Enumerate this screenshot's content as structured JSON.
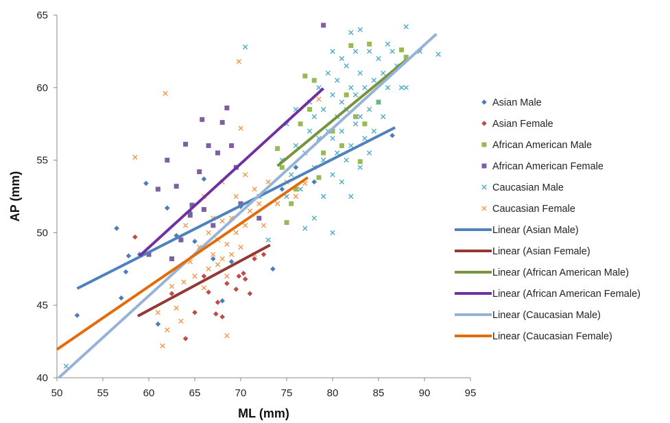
{
  "chart_data": {
    "type": "scatter",
    "title": "",
    "xlabel": "ML (mm)",
    "ylabel": "AP (mm)",
    "xlim": [
      50,
      95
    ],
    "ylim": [
      40,
      65
    ],
    "xticks": [
      50,
      55,
      60,
      65,
      70,
      75,
      80,
      85,
      90,
      95
    ],
    "yticks": [
      40,
      45,
      50,
      55,
      60,
      65
    ],
    "grid": false,
    "legend_position": "right",
    "series": [
      {
        "name": "Asian Male",
        "kind": "points",
        "marker": "diamond",
        "color": "#4a7ebb",
        "points": [
          [
            52.2,
            44.3
          ],
          [
            56.5,
            50.3
          ],
          [
            57.0,
            45.5
          ],
          [
            57.5,
            47.3
          ],
          [
            57.8,
            48.4
          ],
          [
            59.0,
            48.5
          ],
          [
            59.7,
            53.4
          ],
          [
            61.0,
            43.7
          ],
          [
            62.0,
            51.7
          ],
          [
            63.0,
            49.8
          ],
          [
            64.5,
            51.4
          ],
          [
            65.0,
            49.4
          ],
          [
            66.0,
            53.7
          ],
          [
            67.0,
            48.2
          ],
          [
            68.0,
            45.3
          ],
          [
            69.0,
            48.0
          ],
          [
            70.0,
            51.8
          ],
          [
            73.5,
            47.5
          ],
          [
            74.5,
            53.0
          ],
          [
            76.0,
            54.5
          ],
          [
            78.0,
            53.5
          ],
          [
            86.5,
            56.7
          ]
        ]
      },
      {
        "name": "Asian Female",
        "kind": "points",
        "marker": "diamond",
        "color": "#be4b48",
        "points": [
          [
            58.5,
            49.7
          ],
          [
            62.5,
            45.8
          ],
          [
            64.0,
            42.7
          ],
          [
            65.0,
            44.5
          ],
          [
            66.0,
            47.0
          ],
          [
            66.5,
            45.9
          ],
          [
            67.3,
            44.4
          ],
          [
            67.5,
            45.2
          ],
          [
            68.0,
            44.2
          ],
          [
            68.5,
            46.5
          ],
          [
            69.5,
            46.1
          ],
          [
            69.8,
            47.0
          ],
          [
            70.3,
            47.2
          ],
          [
            70.5,
            46.8
          ],
          [
            71.0,
            45.8
          ],
          [
            71.5,
            48.2
          ],
          [
            72.5,
            48.5
          ]
        ]
      },
      {
        "name": "African American Male",
        "kind": "points",
        "marker": "square",
        "color": "#98b954",
        "points": [
          [
            74.0,
            55.8
          ],
          [
            74.5,
            54.5
          ],
          [
            75.0,
            50.7
          ],
          [
            75.5,
            52.0
          ],
          [
            76.0,
            53.0
          ],
          [
            76.5,
            57.5
          ],
          [
            77.0,
            60.8
          ],
          [
            77.5,
            58.5
          ],
          [
            78.0,
            60.5
          ],
          [
            78.5,
            53.8
          ],
          [
            79.0,
            55.5
          ],
          [
            80.0,
            57.0
          ],
          [
            81.0,
            56.0
          ],
          [
            81.5,
            59.5
          ],
          [
            82.0,
            62.9
          ],
          [
            82.5,
            58.0
          ],
          [
            83.0,
            54.9
          ],
          [
            83.5,
            57.5
          ],
          [
            84.0,
            63.0
          ],
          [
            85.0,
            59.0
          ],
          [
            87.5,
            62.6
          ],
          [
            88.0,
            62.1
          ]
        ]
      },
      {
        "name": "African American Female",
        "kind": "points",
        "marker": "square",
        "color": "#7d60a0",
        "points": [
          [
            60.0,
            48.5
          ],
          [
            61.0,
            53.0
          ],
          [
            62.0,
            55.0
          ],
          [
            62.5,
            48.2
          ],
          [
            63.0,
            53.2
          ],
          [
            63.5,
            49.5
          ],
          [
            64.0,
            56.1
          ],
          [
            64.5,
            51.2
          ],
          [
            64.7,
            51.9
          ],
          [
            65.5,
            54.2
          ],
          [
            65.8,
            57.8
          ],
          [
            66.0,
            51.6
          ],
          [
            66.5,
            56.0
          ],
          [
            67.0,
            50.5
          ],
          [
            67.5,
            55.5
          ],
          [
            68.0,
            57.6
          ],
          [
            68.5,
            58.6
          ],
          [
            69.0,
            56.0
          ],
          [
            69.5,
            54.5
          ],
          [
            70.0,
            52.0
          ],
          [
            72.0,
            51.0
          ],
          [
            79.0,
            64.3
          ]
        ]
      },
      {
        "name": "Caucasian Male",
        "kind": "points",
        "marker": "x",
        "color": "#4bacc6",
        "points": [
          [
            51.0,
            40.8
          ],
          [
            70.5,
            62.8
          ],
          [
            72.0,
            52.5
          ],
          [
            73.0,
            49.5
          ],
          [
            74.0,
            52.0
          ],
          [
            74.5,
            55.0
          ],
          [
            75.0,
            52.5
          ],
          [
            75.0,
            57.5
          ],
          [
            75.5,
            54.0
          ],
          [
            76.0,
            56.0
          ],
          [
            76.0,
            58.5
          ],
          [
            76.5,
            53.0
          ],
          [
            77.0,
            50.3
          ],
          [
            77.0,
            55.5
          ],
          [
            77.5,
            57.0
          ],
          [
            77.5,
            59.0
          ],
          [
            78.0,
            51.0
          ],
          [
            78.0,
            54.5
          ],
          [
            78.0,
            58.0
          ],
          [
            78.5,
            56.5
          ],
          [
            78.5,
            60.0
          ],
          [
            79.0,
            52.5
          ],
          [
            79.0,
            55.0
          ],
          [
            79.0,
            58.5
          ],
          [
            79.5,
            57.0
          ],
          [
            79.5,
            61.0
          ],
          [
            80.0,
            50.0
          ],
          [
            80.0,
            54.0
          ],
          [
            80.0,
            56.5
          ],
          [
            80.0,
            59.5
          ],
          [
            80.0,
            62.5
          ],
          [
            80.5,
            55.5
          ],
          [
            80.5,
            58.0
          ],
          [
            80.5,
            60.5
          ],
          [
            81.0,
            53.5
          ],
          [
            81.0,
            57.0
          ],
          [
            81.0,
            59.0
          ],
          [
            81.0,
            62.0
          ],
          [
            81.5,
            55.0
          ],
          [
            81.5,
            58.5
          ],
          [
            81.5,
            61.5
          ],
          [
            82.0,
            52.5
          ],
          [
            82.0,
            56.0
          ],
          [
            82.0,
            60.0
          ],
          [
            82.0,
            63.8
          ],
          [
            82.5,
            57.5
          ],
          [
            82.5,
            59.5
          ],
          [
            82.5,
            62.5
          ],
          [
            83.0,
            54.5
          ],
          [
            83.0,
            58.0
          ],
          [
            83.0,
            61.0
          ],
          [
            83.0,
            64.0
          ],
          [
            83.5,
            56.5
          ],
          [
            83.5,
            60.0
          ],
          [
            84.0,
            55.5
          ],
          [
            84.0,
            58.5
          ],
          [
            84.0,
            62.5
          ],
          [
            84.5,
            57.0
          ],
          [
            84.5,
            60.5
          ],
          [
            85.0,
            59.0
          ],
          [
            85.0,
            62.0
          ],
          [
            85.5,
            58.0
          ],
          [
            85.5,
            61.0
          ],
          [
            86.0,
            63.0
          ],
          [
            86.0,
            60.0
          ],
          [
            86.5,
            62.5
          ],
          [
            87.0,
            61.5
          ],
          [
            87.5,
            60.0
          ],
          [
            88.0,
            64.2
          ],
          [
            88.0,
            60.0
          ],
          [
            89.5,
            62.5
          ],
          [
            91.5,
            62.3
          ]
        ]
      },
      {
        "name": "Caucasian Female",
        "kind": "points",
        "marker": "x",
        "color": "#f79646",
        "points": [
          [
            58.5,
            55.2
          ],
          [
            61.0,
            44.5
          ],
          [
            61.5,
            42.2
          ],
          [
            61.8,
            59.6
          ],
          [
            62.0,
            43.3
          ],
          [
            62.5,
            46.3
          ],
          [
            63.0,
            44.8
          ],
          [
            63.5,
            43.9
          ],
          [
            63.8,
            46.6
          ],
          [
            64.0,
            50.5
          ],
          [
            64.5,
            48.0
          ],
          [
            65.0,
            47.0
          ],
          [
            65.5,
            49.0
          ],
          [
            66.0,
            46.2
          ],
          [
            66.0,
            52.5
          ],
          [
            66.5,
            47.5
          ],
          [
            66.5,
            50.0
          ],
          [
            67.0,
            48.5
          ],
          [
            67.0,
            51.0
          ],
          [
            67.5,
            47.8
          ],
          [
            67.5,
            49.5
          ],
          [
            68.0,
            48.2
          ],
          [
            68.0,
            50.8
          ],
          [
            68.0,
            53.5
          ],
          [
            68.5,
            47.0
          ],
          [
            68.5,
            49.2
          ],
          [
            68.5,
            42.9
          ],
          [
            69.0,
            48.5
          ],
          [
            69.0,
            51.0
          ],
          [
            69.5,
            50.0
          ],
          [
            69.5,
            52.5
          ],
          [
            69.8,
            61.8
          ],
          [
            70.0,
            49.0
          ],
          [
            70.0,
            57.2
          ],
          [
            70.5,
            50.5
          ],
          [
            70.5,
            54.0
          ],
          [
            71.0,
            51.5
          ],
          [
            71.5,
            48.5
          ],
          [
            71.5,
            53.0
          ],
          [
            72.0,
            52.0
          ],
          [
            72.5,
            50.5
          ],
          [
            73.0,
            53.5
          ],
          [
            74.0,
            52.0
          ],
          [
            75.0,
            53.5
          ],
          [
            76.0,
            52.5
          ],
          [
            77.0,
            53.4
          ],
          [
            78.5,
            59.2
          ]
        ]
      },
      {
        "name": "Linear (Asian Male)",
        "kind": "line",
        "color": "#4f81bd",
        "points": [
          [
            52.2,
            46.15
          ],
          [
            86.8,
            57.25
          ]
        ]
      },
      {
        "name": "Linear (Asian Female)",
        "kind": "line",
        "color": "#953735",
        "points": [
          [
            58.8,
            44.25
          ],
          [
            73.2,
            49.15
          ]
        ]
      },
      {
        "name": "Linear (African American Male)",
        "kind": "line",
        "color": "#77933c",
        "points": [
          [
            74.0,
            54.6
          ],
          [
            88.0,
            61.9
          ]
        ]
      },
      {
        "name": "Linear (African American Female)",
        "kind": "line",
        "color": "#7030a0",
        "points": [
          [
            59.0,
            48.4
          ],
          [
            79.0,
            59.95
          ]
        ]
      },
      {
        "name": "Linear (Caucasian Male)",
        "kind": "line",
        "color": "#95b3d7",
        "points": [
          [
            50.2,
            40.0
          ],
          [
            91.3,
            63.7
          ]
        ]
      },
      {
        "name": "Linear (Caucasian Female)",
        "kind": "line",
        "color": "#e36c0a",
        "points": [
          [
            50.0,
            41.95
          ],
          [
            77.3,
            53.8
          ]
        ]
      }
    ]
  }
}
